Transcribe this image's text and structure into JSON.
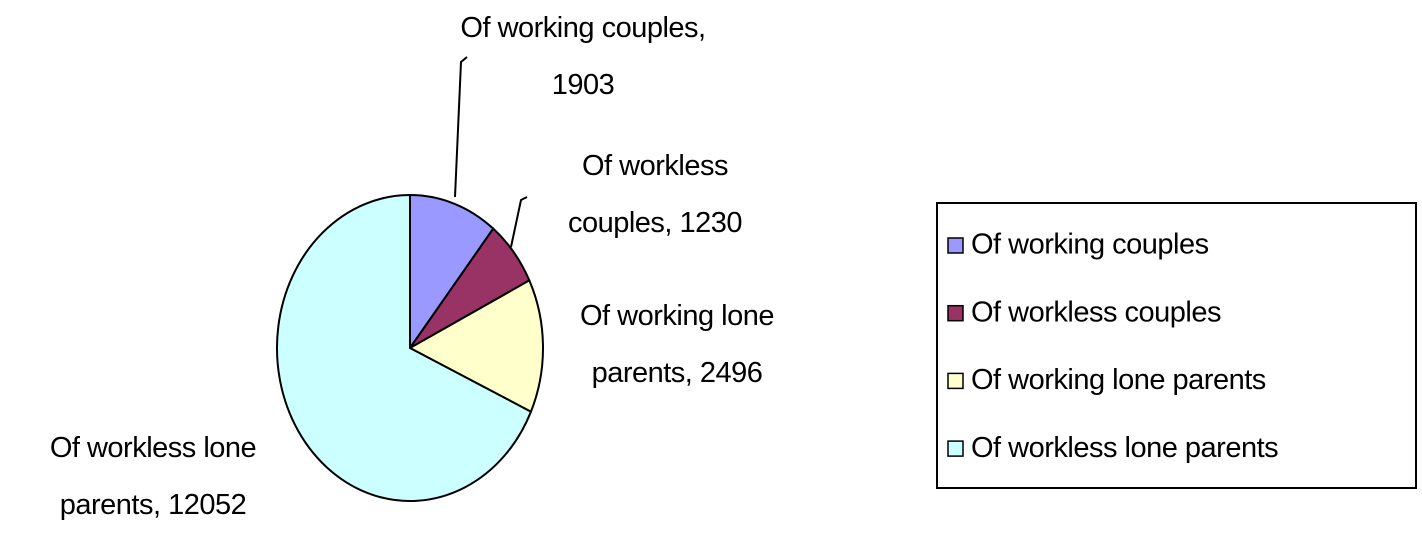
{
  "chart_data": {
    "type": "pie",
    "categories": [
      "Of working couples",
      "Of workless couples",
      "Of working lone parents",
      "Of workless lone parents"
    ],
    "values": [
      1903,
      1230,
      2496,
      12052
    ],
    "value_labels": [
      "Of working couples, 1903",
      "Of workless couples, 1230",
      "Of working lone parents, 2496",
      "Of workless lone parents, 12052"
    ],
    "colors": [
      "#9999ff",
      "#993366",
      "#ffffcc",
      "#ccffff"
    ],
    "legend": "right"
  }
}
